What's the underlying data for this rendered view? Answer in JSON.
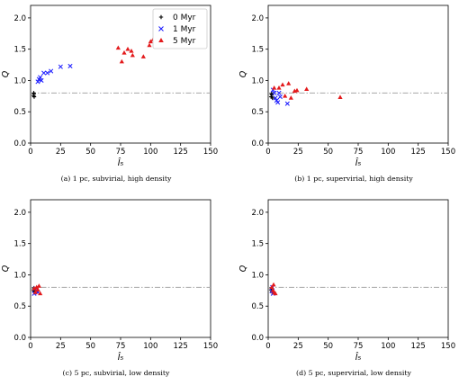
{
  "colors": {
    "0 Myr": "#000000",
    "1 Myr": "#1a1aff",
    "5 Myr": "#e31a1c",
    "reference_line": "#a8a8a8"
  },
  "chart_data": [
    {
      "type": "scatter",
      "caption": "(a) 1 pc, subvirial, high density",
      "xlabel": "Î₅",
      "ylabel": "Q",
      "xlim": [
        0,
        150
      ],
      "ylim": [
        0.0,
        2.2
      ],
      "xticks": [
        "0",
        "25",
        "50",
        "75",
        "100",
        "125",
        "150"
      ],
      "yticks": [
        "0.0",
        "0.5",
        "1.0",
        "1.5",
        "2.0"
      ],
      "reference_line_y": 0.8,
      "legend": {
        "placement": "top-right",
        "entries": [
          "0 Myr",
          "1 Myr",
          "5 Myr"
        ]
      },
      "series": [
        {
          "name": "0 Myr",
          "marker": "plus",
          "points": [
            [
              2.5,
              0.76
            ],
            [
              2.8,
              0.79
            ],
            [
              3.0,
              0.74
            ],
            [
              2.6,
              0.8
            ]
          ]
        },
        {
          "name": "1 Myr",
          "marker": "cross",
          "points": [
            [
              6,
              0.98
            ],
            [
              7,
              1.02
            ],
            [
              8,
              1.05
            ],
            [
              9,
              1.0
            ],
            [
              11,
              1.12
            ],
            [
              14,
              1.12
            ],
            [
              17,
              1.15
            ],
            [
              25,
              1.22
            ],
            [
              33,
              1.23
            ]
          ]
        },
        {
          "name": "5 Myr",
          "marker": "triangle",
          "points": [
            [
              73,
              1.52
            ],
            [
              76,
              1.3
            ],
            [
              78,
              1.44
            ],
            [
              81,
              1.5
            ],
            [
              84,
              1.47
            ],
            [
              85,
              1.4
            ],
            [
              94,
              1.38
            ],
            [
              99,
              1.56
            ],
            [
              100,
              1.62
            ],
            [
              102,
              1.65
            ]
          ]
        }
      ]
    },
    {
      "type": "scatter",
      "caption": "(b) 1 pc, supervirial, high density",
      "xlabel": "Î₅",
      "ylabel": "Q",
      "xlim": [
        0,
        150
      ],
      "ylim": [
        0.0,
        2.2
      ],
      "xticks": [
        "0",
        "25",
        "50",
        "75",
        "100",
        "125",
        "150"
      ],
      "yticks": [
        "0.0",
        "0.5",
        "1.0",
        "1.5",
        "2.0"
      ],
      "reference_line_y": 0.8,
      "series": [
        {
          "name": "0 Myr",
          "marker": "plus",
          "points": [
            [
              2.5,
              0.74
            ],
            [
              3,
              0.77
            ],
            [
              3.5,
              0.72
            ],
            [
              2.8,
              0.79
            ]
          ]
        },
        {
          "name": "1 Myr",
          "marker": "cross",
          "points": [
            [
              4,
              0.85
            ],
            [
              5,
              0.8
            ],
            [
              6,
              0.72
            ],
            [
              7,
              0.68
            ],
            [
              8,
              0.65
            ],
            [
              9,
              0.8
            ],
            [
              10,
              0.74
            ],
            [
              16,
              0.63
            ]
          ]
        },
        {
          "name": "5 Myr",
          "marker": "triangle",
          "points": [
            [
              5,
              0.88
            ],
            [
              9,
              0.88
            ],
            [
              12,
              0.93
            ],
            [
              14,
              0.75
            ],
            [
              17,
              0.95
            ],
            [
              19,
              0.72
            ],
            [
              22,
              0.83
            ],
            [
              24,
              0.84
            ],
            [
              32,
              0.86
            ],
            [
              60,
              0.73
            ]
          ]
        }
      ]
    },
    {
      "type": "scatter",
      "caption": "(c) 5 pc, subvirial, low density",
      "xlabel": "Î₅",
      "ylabel": "Q",
      "xlim": [
        0,
        150
      ],
      "ylim": [
        0.0,
        2.2
      ],
      "xticks": [
        "0",
        "25",
        "50",
        "75",
        "100",
        "125",
        "150"
      ],
      "yticks": [
        "0.0",
        "0.5",
        "1.0",
        "1.5",
        "2.0"
      ],
      "reference_line_y": 0.8,
      "series": [
        {
          "name": "0 Myr",
          "marker": "plus",
          "points": [
            [
              2.5,
              0.76
            ],
            [
              3,
              0.74
            ],
            [
              2.8,
              0.79
            ]
          ]
        },
        {
          "name": "1 Myr",
          "marker": "cross",
          "points": [
            [
              3,
              0.7
            ],
            [
              4,
              0.78
            ],
            [
              5,
              0.74
            ],
            [
              6,
              0.72
            ]
          ]
        },
        {
          "name": "5 Myr",
          "marker": "triangle",
          "points": [
            [
              3,
              0.78
            ],
            [
              4,
              0.72
            ],
            [
              5,
              0.8
            ],
            [
              6,
              0.76
            ],
            [
              7,
              0.82
            ],
            [
              8,
              0.7
            ]
          ]
        }
      ]
    },
    {
      "type": "scatter",
      "caption": "(d) 5 pc, supervirial, low density",
      "xlabel": "Î₅",
      "ylabel": "Q",
      "xlim": [
        0,
        150
      ],
      "ylim": [
        0.0,
        2.2
      ],
      "xticks": [
        "0",
        "25",
        "50",
        "75",
        "100",
        "125",
        "150"
      ],
      "yticks": [
        "0.0",
        "0.5",
        "1.0",
        "1.5",
        "2.0"
      ],
      "reference_line_y": 0.8,
      "series": [
        {
          "name": "0 Myr",
          "marker": "plus",
          "points": [
            [
              2.5,
              0.76
            ],
            [
              3,
              0.73
            ],
            [
              2.8,
              0.79
            ]
          ]
        },
        {
          "name": "1 Myr",
          "marker": "cross",
          "points": [
            [
              3,
              0.74
            ],
            [
              3.5,
              0.8
            ],
            [
              4,
              0.7
            ]
          ]
        },
        {
          "name": "5 Myr",
          "marker": "triangle",
          "points": [
            [
              3,
              0.8
            ],
            [
              4,
              0.75
            ],
            [
              4.5,
              0.84
            ],
            [
              5,
              0.72
            ],
            [
              6,
              0.7
            ]
          ]
        }
      ]
    }
  ]
}
